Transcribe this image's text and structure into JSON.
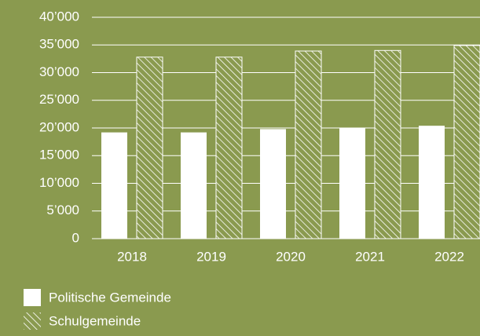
{
  "chart_data": {
    "type": "bar",
    "categories": [
      "2018",
      "2019",
      "2020",
      "2021",
      "2022"
    ],
    "series": [
      {
        "name": "Politische Gemeinde",
        "color": "#ffffff",
        "hatch": false,
        "values": [
          19200,
          19200,
          19800,
          20000,
          20400
        ]
      },
      {
        "name": "Schulgemeinde",
        "color": "#ffffff",
        "hatch": true,
        "values": [
          32800,
          32800,
          33900,
          34000,
          34900
        ]
      }
    ],
    "ylim": [
      0,
      40000
    ],
    "yticks": [
      0,
      {
        "value": 5000,
        "label": "5’000"
      },
      {
        "value": 10000,
        "label": "10’000"
      },
      {
        "value": 15000,
        "label": "15’000"
      },
      {
        "value": 20000,
        "label": "20’000"
      },
      {
        "value": 25000,
        "label": "25’000"
      },
      {
        "value": 30000,
        "label": "30’000"
      },
      {
        "value": 35000,
        "label": "35’000"
      },
      {
        "value": 40000,
        "label": "40’000"
      }
    ],
    "grid": true
  }
}
